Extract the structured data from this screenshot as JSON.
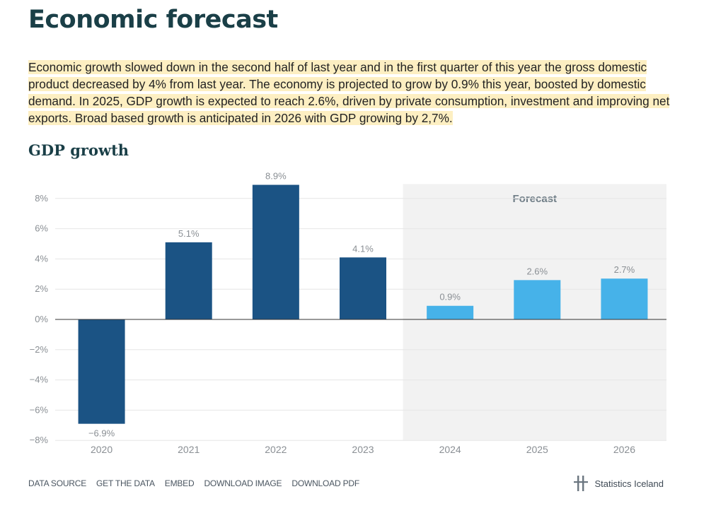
{
  "page": {
    "title": "Economic forecast",
    "intro": "Economic growth slowed down in the second half of last year and in the first quarter of this year the gross domestic product decreased by 4% from last year. The economy is projected to grow by 0.9% this year, boosted by domestic demand. In 2025, GDP growth is expected to reach 2.6%, driven by private consumption, investment and improving net exports. Broad based growth is anticipated in 2026 with GDP growing by 2,7%."
  },
  "chart_data": {
    "type": "bar",
    "title": "GDP growth",
    "categories": [
      "2020",
      "2021",
      "2022",
      "2023",
      "2024",
      "2025",
      "2026"
    ],
    "values": [
      -6.9,
      5.1,
      8.9,
      4.1,
      0.9,
      2.6,
      2.7
    ],
    "value_labels": [
      "−6.9%",
      "5.1%",
      "8.9%",
      "4.1%",
      "0.9%",
      "2.6%",
      "2.7%"
    ],
    "is_forecast": [
      false,
      false,
      false,
      false,
      true,
      true,
      true
    ],
    "forecast_label": "Forecast",
    "yticks": [
      8,
      6,
      4,
      2,
      0,
      -2,
      -4,
      -6,
      -8
    ],
    "ytick_labels": [
      "8%",
      "6%",
      "4%",
      "2%",
      "0%",
      "−2%",
      "−4%",
      "−6%",
      "−8%"
    ],
    "ylim": [
      -8,
      9.5
    ],
    "xlabel": "",
    "ylabel": "",
    "grid": true,
    "colors": {
      "actual": "#1b5384",
      "forecast": "#46b2e9",
      "forecast_band": "#f2f2f2",
      "grid": "#e6e6e6",
      "zero_line": "#333333"
    }
  },
  "footer": {
    "links": [
      "DATA SOURCE",
      "GET THE DATA",
      "EMBED",
      "DOWNLOAD IMAGE",
      "DOWNLOAD PDF"
    ],
    "brand": "Statistics Iceland",
    "brand_icon": "statistics-iceland-logo"
  }
}
